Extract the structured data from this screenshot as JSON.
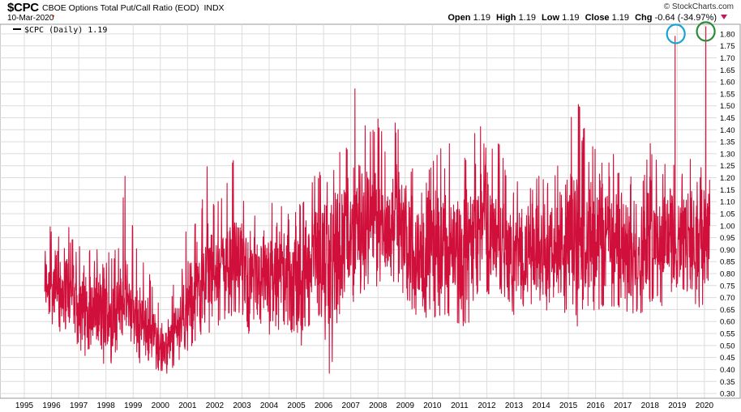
{
  "header": {
    "symbol": "$CPC",
    "description": "CBOE Options Total Put/Call Ratio (EOD)",
    "exchange": "INDX",
    "date": "10-Mar-2020",
    "brand": "© StockCharts.com",
    "open_label": "Open",
    "open": "1.19",
    "high_label": "High",
    "high": "1.19",
    "low_label": "Low",
    "low": "1.19",
    "close_label": "Close",
    "close": "1.19",
    "chg_label": "Chg",
    "chg": "-0.64 (-34.97%)"
  },
  "legend": {
    "label": "$CPC (Daily) 1.19",
    "color": "#000000"
  },
  "colors": {
    "line": "#d0103a",
    "grid": "#dcdcdc",
    "circle_blue": "#1aa3d6",
    "circle_green": "#2e8b3a"
  },
  "chart_data": {
    "type": "line",
    "series_name": "$CPC (Daily)",
    "x_ticks": [
      "1995",
      "1996",
      "1997",
      "1998",
      "1999",
      "2000",
      "2001",
      "2002",
      "2003",
      "2004",
      "2005",
      "2006",
      "2007",
      "2008",
      "2009",
      "2010",
      "2011",
      "2012",
      "2013",
      "2014",
      "2015",
      "2016",
      "2017",
      "2018",
      "2019",
      "2020"
    ],
    "y_ticks": [
      "0.30",
      "0.35",
      "0.40",
      "0.45",
      "0.50",
      "0.55",
      "0.60",
      "0.65",
      "0.70",
      "0.75",
      "0.80",
      "0.85",
      "0.90",
      "0.95",
      "1.00",
      "1.05",
      "1.10",
      "1.15",
      "1.20",
      "1.25",
      "1.30",
      "1.35",
      "1.40",
      "1.45",
      "1.50",
      "1.55",
      "1.60",
      "1.65",
      "1.70",
      "1.75",
      "1.80"
    ],
    "ylim": [
      0.28,
      1.84
    ],
    "xlim": [
      1995.0,
      2020.45
    ],
    "grid": true,
    "annotations": [
      {
        "type": "circle",
        "color": "blue",
        "x": 2018.95,
        "y": 1.8
      },
      {
        "type": "circle",
        "color": "green",
        "x": 2020.05,
        "y": 1.81
      }
    ],
    "envelope": [
      {
        "x": 1995.75,
        "low": 0.6,
        "high": 1.05,
        "avg": 0.78
      },
      {
        "x": 1996.0,
        "low": 0.55,
        "high": 1.0,
        "avg": 0.75
      },
      {
        "x": 1996.25,
        "low": 0.5,
        "high": 0.98,
        "avg": 0.72
      },
      {
        "x": 1996.5,
        "low": 0.52,
        "high": 1.07,
        "avg": 0.74
      },
      {
        "x": 1996.75,
        "low": 0.55,
        "high": 0.95,
        "avg": 0.71
      },
      {
        "x": 1997.0,
        "low": 0.48,
        "high": 0.92,
        "avg": 0.68
      },
      {
        "x": 1997.25,
        "low": 0.45,
        "high": 0.97,
        "avg": 0.66
      },
      {
        "x": 1997.5,
        "low": 0.48,
        "high": 0.88,
        "avg": 0.65
      },
      {
        "x": 1997.75,
        "low": 0.44,
        "high": 0.93,
        "avg": 0.64
      },
      {
        "x": 1998.0,
        "low": 0.3,
        "high": 0.92,
        "avg": 0.63
      },
      {
        "x": 1998.25,
        "low": 0.45,
        "high": 0.87,
        "avg": 0.63
      },
      {
        "x": 1998.5,
        "low": 0.5,
        "high": 0.95,
        "avg": 0.68
      },
      {
        "x": 1998.75,
        "low": 0.52,
        "high": 1.27,
        "avg": 0.7
      },
      {
        "x": 1999.0,
        "low": 0.48,
        "high": 1.0,
        "avg": 0.65
      },
      {
        "x": 1999.25,
        "low": 0.42,
        "high": 0.9,
        "avg": 0.6
      },
      {
        "x": 1999.5,
        "low": 0.44,
        "high": 0.85,
        "avg": 0.58
      },
      {
        "x": 1999.75,
        "low": 0.42,
        "high": 0.75,
        "avg": 0.55
      },
      {
        "x": 2000.0,
        "low": 0.37,
        "high": 0.68,
        "avg": 0.5
      },
      {
        "x": 2000.25,
        "low": 0.38,
        "high": 0.62,
        "avg": 0.48
      },
      {
        "x": 2000.5,
        "low": 0.4,
        "high": 0.78,
        "avg": 0.55
      },
      {
        "x": 2000.75,
        "low": 0.42,
        "high": 0.82,
        "avg": 0.6
      },
      {
        "x": 2001.0,
        "low": 0.45,
        "high": 1.05,
        "avg": 0.68
      },
      {
        "x": 2001.25,
        "low": 0.48,
        "high": 1.02,
        "avg": 0.72
      },
      {
        "x": 2001.5,
        "low": 0.52,
        "high": 1.1,
        "avg": 0.75
      },
      {
        "x": 2001.75,
        "low": 0.55,
        "high": 1.27,
        "avg": 0.8
      },
      {
        "x": 2002.0,
        "low": 0.55,
        "high": 1.1,
        "avg": 0.78
      },
      {
        "x": 2002.25,
        "low": 0.58,
        "high": 1.12,
        "avg": 0.8
      },
      {
        "x": 2002.5,
        "low": 0.6,
        "high": 1.2,
        "avg": 0.85
      },
      {
        "x": 2002.75,
        "low": 0.62,
        "high": 1.33,
        "avg": 0.88
      },
      {
        "x": 2003.0,
        "low": 0.6,
        "high": 1.15,
        "avg": 0.85
      },
      {
        "x": 2003.25,
        "low": 0.55,
        "high": 1.1,
        "avg": 0.8
      },
      {
        "x": 2003.5,
        "low": 0.55,
        "high": 1.05,
        "avg": 0.78
      },
      {
        "x": 2003.75,
        "low": 0.52,
        "high": 1.0,
        "avg": 0.75
      },
      {
        "x": 2004.0,
        "low": 0.52,
        "high": 1.1,
        "avg": 0.76
      },
      {
        "x": 2004.25,
        "low": 0.55,
        "high": 1.18,
        "avg": 0.8
      },
      {
        "x": 2004.5,
        "low": 0.58,
        "high": 1.1,
        "avg": 0.8
      },
      {
        "x": 2004.75,
        "low": 0.5,
        "high": 1.05,
        "avg": 0.76
      },
      {
        "x": 2005.0,
        "low": 0.36,
        "high": 1.1,
        "avg": 0.75
      },
      {
        "x": 2005.25,
        "low": 0.55,
        "high": 1.12,
        "avg": 0.82
      },
      {
        "x": 2005.5,
        "low": 0.58,
        "high": 1.18,
        "avg": 0.85
      },
      {
        "x": 2005.75,
        "low": 0.6,
        "high": 1.25,
        "avg": 0.88
      },
      {
        "x": 2006.0,
        "low": 0.58,
        "high": 1.2,
        "avg": 0.85
      },
      {
        "x": 2006.25,
        "low": 0.32,
        "high": 1.18,
        "avg": 0.82
      },
      {
        "x": 2006.5,
        "low": 0.6,
        "high": 1.35,
        "avg": 0.92
      },
      {
        "x": 2006.75,
        "low": 0.65,
        "high": 1.32,
        "avg": 0.95
      },
      {
        "x": 2007.0,
        "low": 0.65,
        "high": 1.4,
        "avg": 0.96
      },
      {
        "x": 2007.25,
        "low": 0.72,
        "high": 1.7,
        "avg": 1.0
      },
      {
        "x": 2007.5,
        "low": 0.7,
        "high": 1.45,
        "avg": 0.98
      },
      {
        "x": 2007.75,
        "low": 0.75,
        "high": 1.4,
        "avg": 1.0
      },
      {
        "x": 2008.0,
        "low": 0.72,
        "high": 1.45,
        "avg": 1.02
      },
      {
        "x": 2008.25,
        "low": 0.75,
        "high": 1.35,
        "avg": 0.98
      },
      {
        "x": 2008.5,
        "low": 0.78,
        "high": 1.48,
        "avg": 1.02
      },
      {
        "x": 2008.75,
        "low": 0.72,
        "high": 1.4,
        "avg": 1.0
      },
      {
        "x": 2009.0,
        "low": 0.68,
        "high": 1.32,
        "avg": 0.95
      },
      {
        "x": 2009.25,
        "low": 0.62,
        "high": 1.25,
        "avg": 0.9
      },
      {
        "x": 2009.5,
        "low": 0.62,
        "high": 1.2,
        "avg": 0.88
      },
      {
        "x": 2009.75,
        "low": 0.6,
        "high": 1.22,
        "avg": 0.88
      },
      {
        "x": 2010.0,
        "low": 0.6,
        "high": 1.28,
        "avg": 0.9
      },
      {
        "x": 2010.25,
        "low": 0.6,
        "high": 1.3,
        "avg": 0.92
      },
      {
        "x": 2010.5,
        "low": 0.62,
        "high": 1.52,
        "avg": 0.95
      },
      {
        "x": 2010.75,
        "low": 0.6,
        "high": 1.25,
        "avg": 0.9
      },
      {
        "x": 2011.0,
        "low": 0.58,
        "high": 1.22,
        "avg": 0.88
      },
      {
        "x": 2011.25,
        "low": 0.56,
        "high": 1.3,
        "avg": 0.9
      },
      {
        "x": 2011.5,
        "low": 0.65,
        "high": 1.4,
        "avg": 0.95
      },
      {
        "x": 2011.75,
        "low": 0.75,
        "high": 1.42,
        "avg": 1.05
      },
      {
        "x": 2012.0,
        "low": 0.7,
        "high": 1.35,
        "avg": 1.0
      },
      {
        "x": 2012.25,
        "low": 0.68,
        "high": 1.33,
        "avg": 0.98
      },
      {
        "x": 2012.5,
        "low": 0.72,
        "high": 1.38,
        "avg": 1.0
      },
      {
        "x": 2012.75,
        "low": 0.66,
        "high": 1.2,
        "avg": 0.9
      },
      {
        "x": 2013.0,
        "low": 0.62,
        "high": 1.18,
        "avg": 0.86
      },
      {
        "x": 2013.25,
        "low": 0.64,
        "high": 1.2,
        "avg": 0.88
      },
      {
        "x": 2013.5,
        "low": 0.65,
        "high": 1.18,
        "avg": 0.88
      },
      {
        "x": 2013.75,
        "low": 0.66,
        "high": 1.2,
        "avg": 0.9
      },
      {
        "x": 2014.0,
        "low": 0.65,
        "high": 1.22,
        "avg": 0.92
      },
      {
        "x": 2014.25,
        "low": 0.62,
        "high": 1.18,
        "avg": 0.88
      },
      {
        "x": 2014.5,
        "low": 0.64,
        "high": 1.25,
        "avg": 0.9
      },
      {
        "x": 2014.75,
        "low": 0.62,
        "high": 1.3,
        "avg": 0.92
      },
      {
        "x": 2015.0,
        "low": 0.65,
        "high": 1.35,
        "avg": 0.95
      },
      {
        "x": 2015.25,
        "low": 0.56,
        "high": 1.68,
        "avg": 0.94
      },
      {
        "x": 2015.5,
        "low": 0.62,
        "high": 1.4,
        "avg": 0.96
      },
      {
        "x": 2015.75,
        "low": 0.65,
        "high": 1.45,
        "avg": 0.98
      },
      {
        "x": 2016.0,
        "low": 0.62,
        "high": 1.32,
        "avg": 0.95
      },
      {
        "x": 2016.25,
        "low": 0.64,
        "high": 1.3,
        "avg": 0.95
      },
      {
        "x": 2016.5,
        "low": 0.66,
        "high": 1.4,
        "avg": 0.98
      },
      {
        "x": 2016.75,
        "low": 0.64,
        "high": 1.28,
        "avg": 0.94
      },
      {
        "x": 2017.0,
        "low": 0.62,
        "high": 1.22,
        "avg": 0.9
      },
      {
        "x": 2017.25,
        "low": 0.62,
        "high": 1.2,
        "avg": 0.9
      },
      {
        "x": 2017.5,
        "low": 0.64,
        "high": 1.25,
        "avg": 0.92
      },
      {
        "x": 2017.75,
        "low": 0.62,
        "high": 1.2,
        "avg": 0.9
      },
      {
        "x": 2018.0,
        "low": 0.65,
        "high": 1.35,
        "avg": 0.95
      },
      {
        "x": 2018.25,
        "low": 0.68,
        "high": 1.28,
        "avg": 0.96
      },
      {
        "x": 2018.5,
        "low": 0.66,
        "high": 1.25,
        "avg": 0.94
      },
      {
        "x": 2018.75,
        "low": 0.7,
        "high": 1.3,
        "avg": 0.98
      },
      {
        "x": 2019.0,
        "low": 0.72,
        "high": 1.3,
        "avg": 0.98
      },
      {
        "x": 2019.25,
        "low": 0.7,
        "high": 1.25,
        "avg": 0.96
      },
      {
        "x": 2019.5,
        "low": 0.72,
        "high": 1.28,
        "avg": 0.98
      },
      {
        "x": 2019.75,
        "low": 0.65,
        "high": 1.22,
        "avg": 0.92
      },
      {
        "x": 2020.0,
        "low": 0.63,
        "high": 1.3,
        "avg": 0.95
      },
      {
        "x": 2020.2,
        "low": 0.8,
        "high": 1.3,
        "avg": 1.05
      }
    ],
    "spikes": [
      {
        "x": 2018.92,
        "y": 1.79,
        "base": 0.95
      },
      {
        "x": 2020.05,
        "y": 1.83,
        "base": 0.95
      },
      {
        "x": 2020.19,
        "y": 1.19,
        "base": 1.0
      }
    ]
  }
}
